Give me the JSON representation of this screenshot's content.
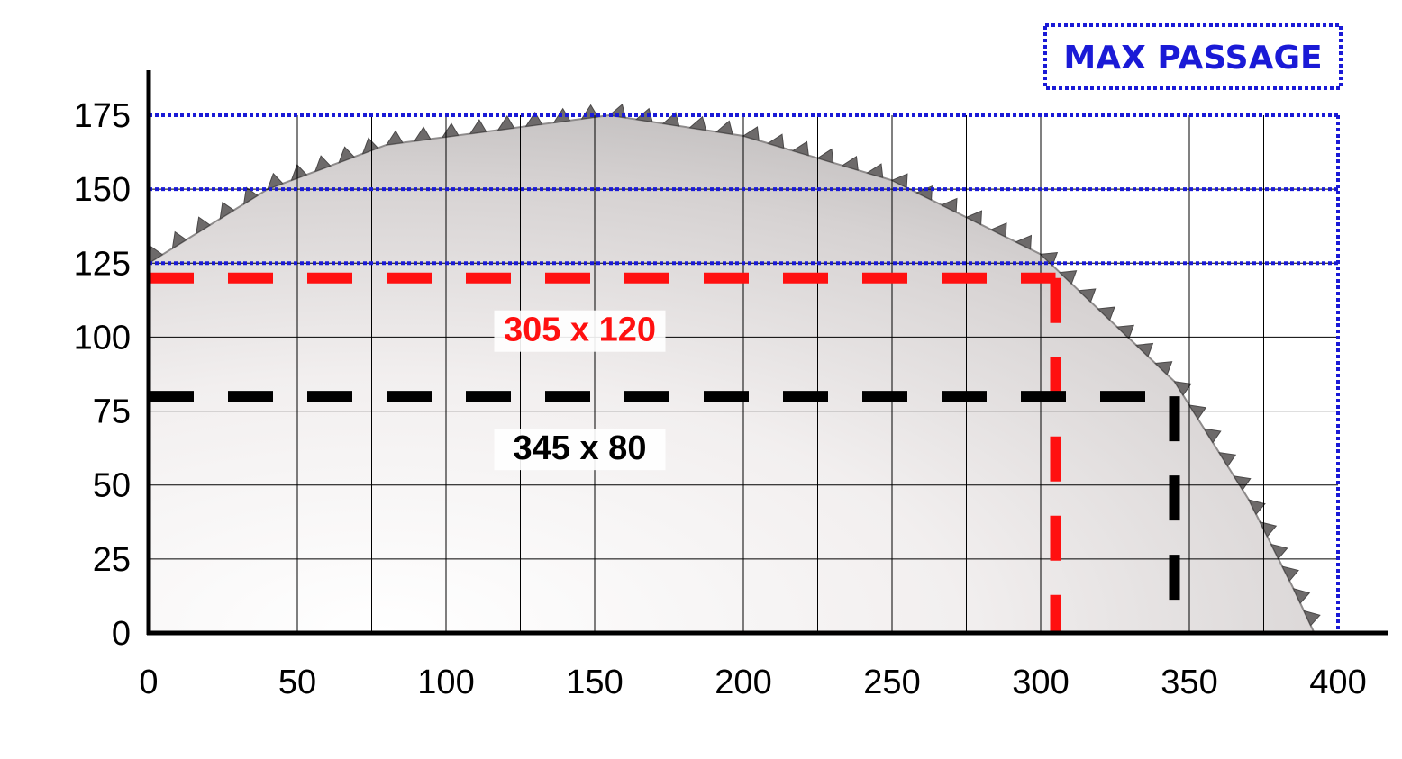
{
  "chart_data": {
    "type": "line",
    "xlim": [
      0,
      400
    ],
    "ylim": [
      0,
      175
    ],
    "x_ticks": [
      "0",
      "50",
      "100",
      "150",
      "200",
      "250",
      "300",
      "350",
      "400"
    ],
    "y_ticks": [
      "0",
      "25",
      "50",
      "75",
      "100",
      "125",
      "150",
      "175"
    ],
    "grid": true,
    "grid_x_step": 25,
    "grid_y_step": 25,
    "badge": {
      "label": "MAX PASSAGE",
      "color": "#1a1ad6"
    },
    "max_passage_lines": {
      "y_values": [
        125,
        150,
        175
      ],
      "x_edge": 400,
      "color": "#1a1ad6",
      "style": "dotted"
    },
    "series": [
      {
        "label": "305 x 120",
        "x": 305,
        "y": 120,
        "color": "#ff1010",
        "style": "dashed"
      },
      {
        "label": "345 x 80",
        "x": 345,
        "y": 80,
        "color": "#000000",
        "style": "dashed"
      }
    ],
    "blade": {
      "description_icon": "saw-blade-icon",
      "outline": [
        [
          0,
          125
        ],
        [
          40,
          150
        ],
        [
          80,
          165
        ],
        [
          155,
          175
        ],
        [
          200,
          168
        ],
        [
          250,
          153
        ],
        [
          300,
          128
        ],
        [
          345,
          85
        ],
        [
          370,
          45
        ],
        [
          385,
          15
        ],
        [
          392,
          0
        ]
      ]
    }
  }
}
